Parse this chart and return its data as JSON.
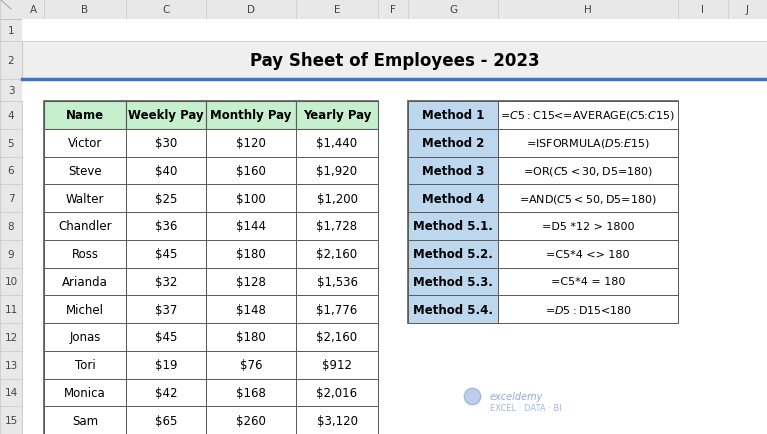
{
  "title": "Pay Sheet of Employees - 2023",
  "col_headers": [
    "Name",
    "Weekly Pay",
    "Monthly Pay",
    "Yearly Pay"
  ],
  "rows": [
    [
      "Victor",
      "$30",
      "$120",
      "$1,440"
    ],
    [
      "Steve",
      "$40",
      "$160",
      "$1,920"
    ],
    [
      "Walter",
      "$25",
      "$100",
      "$1,200"
    ],
    [
      "Chandler",
      "$36",
      "$144",
      "$1,728"
    ],
    [
      "Ross",
      "$45",
      "$180",
      "$2,160"
    ],
    [
      "Arianda",
      "$32",
      "$128",
      "$1,536"
    ],
    [
      "Michel",
      "$37",
      "$148",
      "$1,776"
    ],
    [
      "Jonas",
      "$45",
      "$180",
      "$2,160"
    ],
    [
      "Tori",
      "$19",
      "$76",
      "$912"
    ],
    [
      "Monica",
      "$42",
      "$168",
      "$2,016"
    ],
    [
      "Sam",
      "$65",
      "$260",
      "$3,120"
    ]
  ],
  "method_labels": [
    "Method 1",
    "Method 2",
    "Method 3",
    "Method 4",
    "Method 5.1.",
    "Method 5.2.",
    "Method 5.3.",
    "Method 5.4."
  ],
  "method_formulas": [
    "=$C5:$C15<=AVERAGE($C$5:$C$15)",
    "=ISFORMULA($D$5:$E$15)",
    "=OR($C5<30, $D5=180)",
    "=AND($C5<50, $D5=180)",
    "=D5 *12 > 1800",
    "=C5*4 <> 180",
    "=C5*4 = 180",
    "=$D5:$D15<180"
  ],
  "bg_color": "#ffffff",
  "header_fill": "#c6efce",
  "method_label_fill": "#bdd7ee",
  "title_bg": "#efefef",
  "excel_col_bg": "#e8e8e8",
  "excel_col_labels": [
    "A",
    "B",
    "C",
    "D",
    "E",
    "F",
    "G",
    "H",
    "I",
    "J"
  ],
  "excel_row_labels": [
    "1",
    "2",
    "3",
    "4",
    "5",
    "6",
    "7",
    "8",
    "9",
    "10",
    "11",
    "12",
    "13",
    "14",
    "15"
  ],
  "watermark_text": "exceldemy",
  "watermark_text2": "EXCEL · DATA · BI"
}
